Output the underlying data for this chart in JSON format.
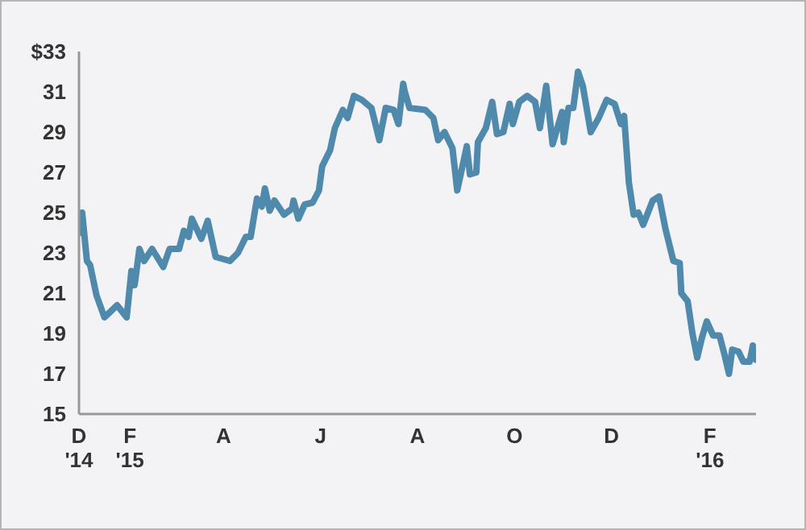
{
  "chart_data": {
    "type": "line",
    "series": [
      {
        "color": "#4f8aac",
        "x": [
          "2015-01-01",
          "2015-01-02",
          "2015-01-05",
          "2015-01-07",
          "2015-01-11",
          "2015-01-16",
          "2015-01-24",
          "2015-01-30",
          "2015-02-02",
          "2015-02-04",
          "2015-02-07",
          "2015-02-10",
          "2015-02-15",
          "2015-02-22",
          "2015-02-26",
          "2015-03-04",
          "2015-03-07",
          "2015-03-10",
          "2015-03-12",
          "2015-03-18",
          "2015-03-22",
          "2015-03-27",
          "2015-04-05",
          "2015-04-10",
          "2015-04-15",
          "2015-04-18",
          "2015-04-22",
          "2015-04-25",
          "2015-04-27",
          "2015-04-30",
          "2015-05-03",
          "2015-05-09",
          "2015-05-14",
          "2015-05-15",
          "2015-05-18",
          "2015-05-22",
          "2015-05-27",
          "2015-05-31",
          "2015-06-02",
          "2015-06-07",
          "2015-06-10",
          "2015-06-15",
          "2015-06-18",
          "2015-06-22",
          "2015-06-27",
          "2015-07-03",
          "2015-07-08",
          "2015-07-12",
          "2015-07-17",
          "2015-07-20",
          "2015-07-23",
          "2015-07-24",
          "2015-07-27",
          "2015-08-06",
          "2015-08-11",
          "2015-08-14",
          "2015-08-18",
          "2015-08-23",
          "2015-08-26",
          "2015-09-01",
          "2015-09-03",
          "2015-09-07",
          "2015-09-08",
          "2015-09-13",
          "2015-09-17",
          "2015-09-20",
          "2015-09-24",
          "2015-09-28",
          "2015-09-30",
          "2015-10-04",
          "2015-10-09",
          "2015-10-14",
          "2015-10-17",
          "2015-10-21",
          "2015-10-25",
          "2015-10-28",
          "2015-10-31",
          "2015-11-01",
          "2015-11-04",
          "2015-11-07",
          "2015-11-10",
          "2015-11-13",
          "2015-11-18",
          "2015-11-23",
          "2015-11-28",
          "2015-12-03",
          "2015-12-07",
          "2015-12-09",
          "2015-12-12",
          "2015-12-15",
          "2015-12-18",
          "2015-12-21",
          "2015-12-27",
          "2015-12-31",
          "2016-01-04",
          "2016-01-09",
          "2016-01-13",
          "2016-01-14",
          "2016-01-18",
          "2016-01-21",
          "2016-01-24",
          "2016-01-27",
          "2016-01-30",
          "2016-02-03",
          "2016-02-07",
          "2016-02-10",
          "2016-02-13",
          "2016-02-15",
          "2016-02-19",
          "2016-02-22",
          "2016-02-26",
          "2016-02-28",
          "2016-03-01"
        ],
        "values": [
          24.0,
          25.0,
          22.6,
          22.4,
          20.9,
          19.8,
          20.4,
          19.8,
          22.1,
          21.4,
          23.2,
          22.6,
          23.2,
          22.3,
          23.2,
          23.2,
          24.1,
          23.8,
          24.7,
          23.7,
          24.6,
          22.8,
          22.6,
          23.0,
          23.8,
          23.8,
          25.7,
          25.3,
          26.2,
          25.1,
          25.6,
          24.9,
          25.2,
          25.6,
          24.7,
          25.4,
          25.5,
          26.1,
          27.3,
          28.1,
          29.2,
          30.1,
          29.7,
          30.8,
          30.6,
          30.2,
          28.6,
          30.2,
          30.1,
          29.4,
          31.4,
          31.0,
          30.2,
          30.1,
          29.7,
          28.6,
          29.0,
          28.2,
          26.1,
          28.3,
          26.9,
          27.0,
          28.5,
          29.2,
          30.5,
          28.9,
          29.0,
          30.4,
          29.4,
          30.5,
          30.8,
          30.5,
          29.2,
          31.3,
          28.4,
          29.2,
          30.0,
          28.5,
          30.2,
          30.2,
          32.0,
          31.3,
          29.0,
          29.7,
          30.6,
          30.4,
          29.4,
          29.8,
          26.5,
          24.9,
          25.0,
          24.4,
          25.6,
          25.8,
          24.2,
          22.6,
          22.5,
          21.0,
          20.6,
          19.0,
          17.8,
          18.8,
          19.6,
          18.9,
          18.9,
          18.0,
          17.0,
          18.2,
          18.1,
          17.6,
          17.6,
          18.4,
          17.7
        ]
      }
    ],
    "xlim": [
      "2014-12-31",
      "2016-03-01"
    ],
    "xticks": [
      {
        "value": "2014-12-31",
        "label": "D\n'14"
      },
      {
        "value": "2015-02-01",
        "label": "F\n'15"
      },
      {
        "value": "2015-04-01",
        "label": "A"
      },
      {
        "value": "2015-06-01",
        "label": "J"
      },
      {
        "value": "2015-08-01",
        "label": "A"
      },
      {
        "value": "2015-10-01",
        "label": "O"
      },
      {
        "value": "2015-12-01",
        "label": "D"
      },
      {
        "value": "2016-02-01",
        "label": "F\n'16"
      }
    ],
    "ylim": [
      15,
      33
    ],
    "yticks": [
      15,
      17,
      19,
      21,
      23,
      25,
      27,
      29,
      31,
      {
        "value": 33,
        "label": "$33"
      }
    ],
    "grid": false,
    "legend": false,
    "marker": "none",
    "line_style": "solid"
  }
}
